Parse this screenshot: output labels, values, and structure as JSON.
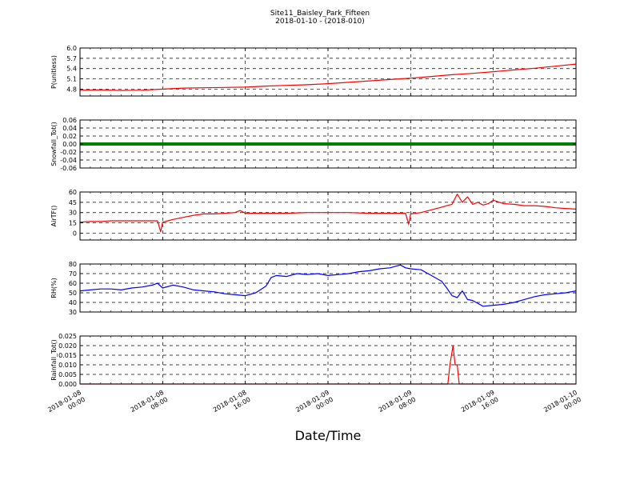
{
  "figure": {
    "title_line1": "Site11_Baisley_Park_Fifteen",
    "title_line2": "2018-01-10 - (2018-010)",
    "xlabel": "Date/Time"
  },
  "chart_data": [
    {
      "type": "line",
      "ylabel": "P(unitless)",
      "color": "#ff0000",
      "ylim": [
        4.6,
        6.0
      ],
      "yticks": [
        "4.8",
        "5.1",
        "5.4",
        "5.7",
        "6.0"
      ],
      "ytick_values": [
        4.8,
        5.1,
        5.4,
        5.7,
        6.0
      ],
      "grid": true,
      "x_hours": [
        0,
        2,
        4,
        6,
        8,
        10,
        12,
        14,
        16,
        18,
        20,
        22,
        24,
        26,
        28,
        30,
        32,
        34,
        36,
        38,
        40,
        42,
        44,
        46,
        48
      ],
      "values": [
        4.77,
        4.78,
        4.76,
        4.77,
        4.8,
        4.83,
        4.84,
        4.85,
        4.86,
        4.89,
        4.91,
        4.93,
        4.96,
        5.0,
        5.04,
        5.08,
        5.12,
        5.17,
        5.22,
        5.26,
        5.31,
        5.36,
        5.41,
        5.47,
        5.53
      ]
    },
    {
      "type": "line",
      "ylabel": "Snowfall_Tot()",
      "color": "#008000",
      "ylim": [
        -0.06,
        0.06
      ],
      "yticks": [
        "-0.06",
        "-0.04",
        "-0.02",
        "0.00",
        "0.02",
        "0.04",
        "0.06"
      ],
      "ytick_values": [
        -0.06,
        -0.04,
        -0.02,
        0.0,
        0.02,
        0.04,
        0.06
      ],
      "grid": true,
      "x_hours": [
        0,
        48
      ],
      "values": [
        0.0,
        0.0
      ]
    },
    {
      "type": "line",
      "ylabel": "AirTF()",
      "color": "#ff0000",
      "ylim": [
        -10,
        60
      ],
      "yticks": [
        "0",
        "15",
        "30",
        "45",
        "60"
      ],
      "ytick_values": [
        0,
        15,
        30,
        45,
        60
      ],
      "grid": true,
      "x_hours": [
        0,
        1,
        2,
        3,
        4,
        5,
        6,
        7,
        7.5,
        7.8,
        8,
        8.5,
        9,
        10,
        11,
        12,
        13,
        14,
        15,
        15.5,
        16,
        17,
        18,
        19,
        20,
        22,
        24,
        26,
        28,
        30,
        31,
        31.5,
        31.8,
        32,
        33,
        34,
        35,
        35.5,
        36,
        36.5,
        37,
        37.5,
        38,
        38.5,
        39,
        39.5,
        40,
        41,
        42,
        43,
        44,
        45,
        46,
        47,
        48
      ],
      "values": [
        16,
        17,
        17,
        18,
        18,
        18,
        18,
        18,
        18,
        2,
        16,
        18,
        20,
        23,
        26,
        28,
        28,
        29,
        30,
        33,
        29,
        29,
        29,
        29,
        29,
        30,
        30,
        30,
        29,
        29,
        29,
        29,
        13,
        28,
        30,
        34,
        38,
        40,
        42,
        57,
        45,
        53,
        42,
        45,
        41,
        43,
        48,
        43,
        42,
        40,
        40,
        39,
        37,
        36,
        35
      ]
    },
    {
      "type": "line",
      "ylabel": "RH(%)",
      "color": "#0000ff",
      "ylim": [
        30,
        80
      ],
      "yticks": [
        "30",
        "40",
        "50",
        "60",
        "70",
        "80"
      ],
      "ytick_values": [
        30,
        40,
        50,
        60,
        70,
        80
      ],
      "grid": true,
      "x_hours": [
        0,
        1,
        2,
        3,
        4,
        5,
        6,
        7,
        7.5,
        8,
        9,
        10,
        11,
        12,
        13,
        14,
        15,
        16,
        17,
        18,
        18.5,
        19,
        20,
        21,
        22,
        23,
        24,
        25,
        26,
        27,
        28,
        29,
        30,
        31,
        31.5,
        32,
        33,
        34,
        35,
        35.5,
        36,
        36.5,
        37,
        37.5,
        38,
        39,
        40,
        41,
        42,
        43,
        44,
        45,
        46,
        47,
        48
      ],
      "values": [
        52,
        53,
        54,
        54,
        53,
        55,
        56,
        58,
        60,
        55,
        58,
        56,
        53,
        52,
        51,
        49,
        48,
        47,
        50,
        57,
        66,
        68,
        67,
        70,
        69,
        70,
        68,
        69,
        70,
        72,
        73,
        75,
        76,
        79,
        76,
        75,
        74,
        68,
        62,
        55,
        47,
        45,
        52,
        43,
        42,
        36,
        37,
        38,
        40,
        43,
        46,
        48,
        49,
        50,
        52
      ]
    },
    {
      "type": "line",
      "ylabel": "Rainfall_Tot()",
      "color": "#ff0000",
      "ylim": [
        0.0,
        0.025
      ],
      "yticks": [
        "0.000",
        "0.005",
        "0.010",
        "0.015",
        "0.020",
        "0.025"
      ],
      "ytick_values": [
        0.0,
        0.005,
        0.01,
        0.015,
        0.02,
        0.025
      ],
      "grid": true,
      "x_hours": [
        0,
        35.6,
        35.8,
        36.1,
        36.3,
        36.5,
        36.7,
        37.0,
        48
      ],
      "values": [
        0,
        0,
        0.01,
        0.02,
        0.01,
        0.01,
        0,
        0,
        0
      ]
    }
  ],
  "x_axis": {
    "range_hours": [
      0,
      48
    ],
    "tick_hours": [
      0,
      8,
      16,
      24,
      32,
      40,
      48
    ],
    "tick_labels": [
      [
        "2018-01-08",
        "00:00"
      ],
      [
        "2018-01-08",
        "08:00"
      ],
      [
        "2018-01-08",
        "16:00"
      ],
      [
        "2018-01-09",
        "00:00"
      ],
      [
        "2018-01-09",
        "08:00"
      ],
      [
        "2018-01-09",
        "16:00"
      ],
      [
        "2018-01-10",
        "00:00"
      ]
    ]
  }
}
